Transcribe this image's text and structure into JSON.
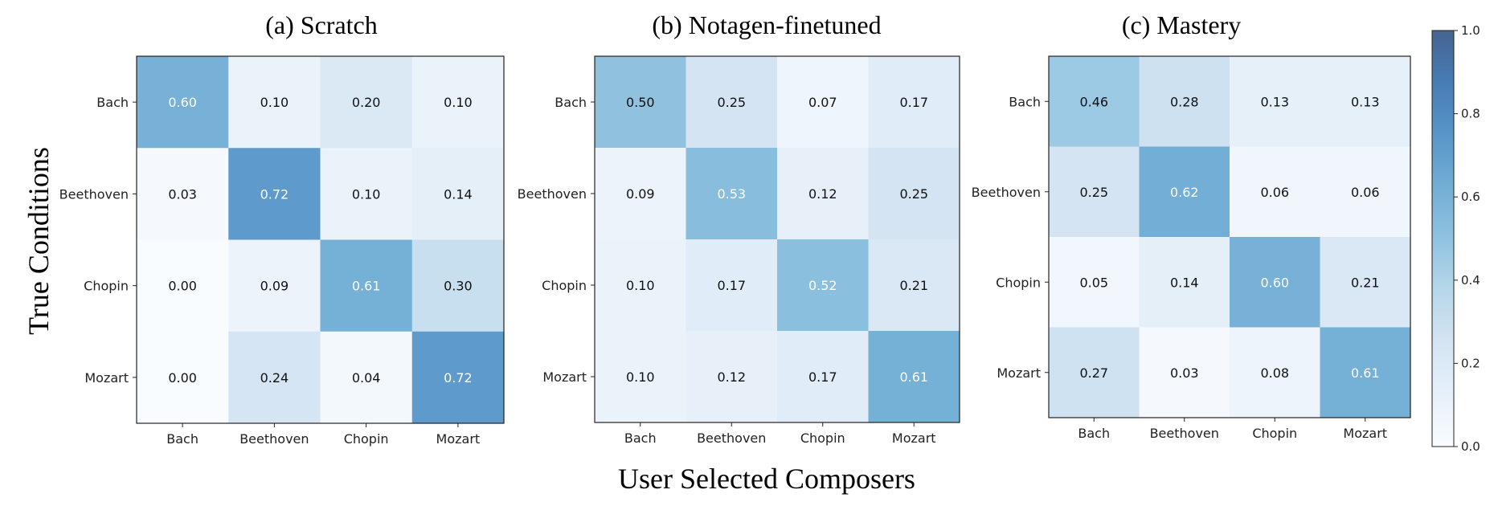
{
  "chart_data": [
    {
      "type": "heatmap",
      "title": "(a) Scratch",
      "x_categories": [
        "Bach",
        "Beethoven",
        "Chopin",
        "Mozart"
      ],
      "y_categories": [
        "Bach",
        "Beethoven",
        "Chopin",
        "Mozart"
      ],
      "values": [
        [
          "0.60",
          "0.10",
          "0.20",
          "0.10"
        ],
        [
          "0.03",
          "0.72",
          "0.10",
          "0.14"
        ],
        [
          "0.00",
          "0.09",
          "0.61",
          "0.30"
        ],
        [
          "0.00",
          "0.24",
          "0.04",
          "0.72"
        ]
      ]
    },
    {
      "type": "heatmap",
      "title": "(b) Notagen-finetuned",
      "x_categories": [
        "Bach",
        "Beethoven",
        "Chopin",
        "Mozart"
      ],
      "y_categories": [
        "Bach",
        "Beethoven",
        "Chopin",
        "Mozart"
      ],
      "values": [
        [
          "0.50",
          "0.25",
          "0.07",
          "0.17"
        ],
        [
          "0.09",
          "0.53",
          "0.12",
          "0.25"
        ],
        [
          "0.10",
          "0.17",
          "0.52",
          "0.21"
        ],
        [
          "0.10",
          "0.12",
          "0.17",
          "0.61"
        ]
      ]
    },
    {
      "type": "heatmap",
      "title": "(c) Mastery",
      "x_categories": [
        "Bach",
        "Beethoven",
        "Chopin",
        "Mozart"
      ],
      "y_categories": [
        "Bach",
        "Beethoven",
        "Chopin",
        "Mozart"
      ],
      "values": [
        [
          "0.46",
          "0.28",
          "0.13",
          "0.13"
        ],
        [
          "0.25",
          "0.62",
          "0.06",
          "0.06"
        ],
        [
          "0.05",
          "0.14",
          "0.60",
          "0.21"
        ],
        [
          "0.27",
          "0.03",
          "0.08",
          "0.61"
        ]
      ]
    }
  ],
  "shared": {
    "xlabel": "User Selected Composers",
    "ylabel": "True Conditions"
  },
  "colorbar": {
    "range": [
      0.0,
      1.0
    ],
    "ticks": [
      "0.0",
      "0.2",
      "0.4",
      "0.6",
      "0.8",
      "1.0"
    ],
    "color_low": "#f7fbff",
    "color_high": "#08306b",
    "cell_alpha": 0.75
  }
}
